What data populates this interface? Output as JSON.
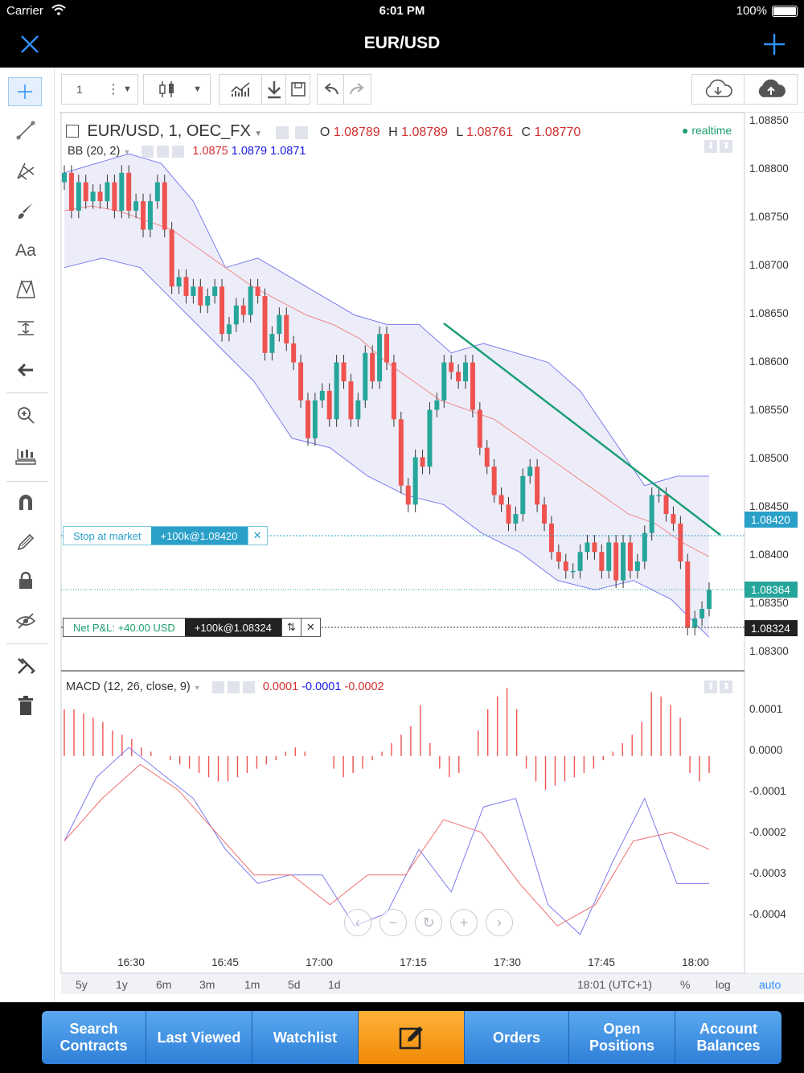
{
  "status": {
    "carrier": "Carrier",
    "time": "6:01 PM",
    "battery": "100%"
  },
  "nav": {
    "title": "EUR/USD"
  },
  "toolbar": {
    "interval": "1"
  },
  "legend": {
    "symbol": "EUR/USD, 1, OEC_FX",
    "o_label": "O",
    "o": "1.08789",
    "h_label": "H",
    "h": "1.08789",
    "l_label": "L",
    "l": "1.08761",
    "c_label": "C",
    "c": "1.08770",
    "realtime": "realtime",
    "bb_name": "BB (20, 2)",
    "bb_v1": "1.0875",
    "bb_v2": "1.0879",
    "bb_v3": "1.0871",
    "macd_name": "MACD (12, 26, close, 9)",
    "macd_v1": "0.0001",
    "macd_v2": "-0.0001",
    "macd_v3": "-0.0002"
  },
  "orders": {
    "stop_label": "Stop at market",
    "stop_value": "+100k@1.08420",
    "pnl_label": "Net P&L: +40.00 USD",
    "pos_value": "+100k@1.08324"
  },
  "price_tags": {
    "stop": "1.08420",
    "last": "1.08364",
    "position": "1.08324"
  },
  "price_axis": [
    "1.08850",
    "1.08800",
    "1.08750",
    "1.08700",
    "1.08650",
    "1.08600",
    "1.08550",
    "1.08500",
    "1.08450",
    "1.08400",
    "1.08350",
    "1.08300"
  ],
  "macd_axis": [
    "0.0001",
    "0.0000",
    "-0.0001",
    "-0.0002",
    "-0.0003",
    "-0.0004"
  ],
  "time_axis": [
    "16:30",
    "16:45",
    "17:00",
    "17:15",
    "17:30",
    "17:45",
    "18:00"
  ],
  "ranges": [
    "5y",
    "1y",
    "6m",
    "3m",
    "1m",
    "5d",
    "1d"
  ],
  "bottom_right": {
    "clock": "18:01 (UTC+1)",
    "pct": "%",
    "log": "log",
    "auto": "auto"
  },
  "tabs": [
    {
      "label": "Search Contracts"
    },
    {
      "label": "Last Viewed"
    },
    {
      "label": "Watchlist"
    },
    {
      "label": ""
    },
    {
      "label": "Orders"
    },
    {
      "label": "Open Positions"
    },
    {
      "label": "Account Balances"
    }
  ],
  "colors": {
    "up": "#26a69a",
    "down": "#ef5350",
    "accent": "#2f7fd8",
    "tab_active": "#f39512",
    "bb_fill": "#e6e6f7"
  },
  "chart_data": [
    {
      "type": "candlestick",
      "title": "EUR/USD, 1, OEC_FX",
      "x_ticks": [
        "16:30",
        "16:45",
        "17:00",
        "17:15",
        "17:30",
        "17:45",
        "18:00"
      ],
      "ylim": [
        1.0827,
        1.0886
      ],
      "series": [
        {
          "name": "EUR/USD",
          "close": [
            1.088,
            1.0876,
            1.0879,
            1.0877,
            1.0878,
            1.0877,
            1.0879,
            1.0876,
            1.088,
            1.0876,
            1.0877,
            1.0874,
            1.0877,
            1.0879,
            1.0874,
            1.0868,
            1.0869,
            1.0867,
            1.0868,
            1.0866,
            1.0867,
            1.0868,
            1.0863,
            1.0864,
            1.0866,
            1.0865,
            1.0868,
            1.0867,
            1.0861,
            1.0863,
            1.0865,
            1.0862,
            1.086,
            1.0856,
            1.0852,
            1.0856,
            1.0857,
            1.0854,
            1.086,
            1.0858,
            1.0854,
            1.0856,
            1.0861,
            1.0858,
            1.0863,
            1.086,
            1.0854,
            1.0847,
            1.0845,
            1.085,
            1.0849,
            1.0855,
            1.0856,
            1.086,
            1.0859,
            1.0858,
            1.086,
            1.0855,
            1.0851,
            1.0849,
            1.0846,
            1.0845,
            1.0843,
            1.0844,
            1.0848,
            1.0849,
            1.0845,
            1.0843,
            1.084,
            1.0839,
            1.0838,
            1.0838,
            1.084,
            1.0841,
            1.084,
            1.0838,
            1.0841,
            1.0837,
            1.0841,
            1.0838,
            1.0839,
            1.0842,
            1.0846,
            1.0846,
            1.0844,
            1.0843,
            1.0839,
            1.0832,
            1.0833,
            1.0834,
            1.0836
          ]
        }
      ]
    },
    {
      "type": "line",
      "title": "BB (20, 2)",
      "series": [
        {
          "name": "basis",
          "values": [
            1.0876,
            1.08765,
            1.0876,
            1.0875,
            1.0874,
            1.0872,
            1.087,
            1.0868,
            1.08665,
            1.0865,
            1.0864,
            1.08625,
            1.086,
            1.0858,
            1.0856,
            1.0855,
            1.0854,
            1.0852,
            1.085,
            1.0848,
            1.0846,
            1.0844,
            1.0843,
            1.0841,
            1.08395
          ]
        },
        {
          "name": "upper",
          "values": [
            1.088,
            1.0881,
            1.0882,
            1.0881,
            1.0877,
            1.087,
            1.0871,
            1.0869,
            1.0867,
            1.0865,
            1.0864,
            1.0864,
            1.0861,
            1.0862,
            1.0861,
            1.086,
            1.0857,
            1.0852,
            1.0847,
            1.0848,
            1.0848
          ]
        },
        {
          "name": "lower",
          "values": [
            1.087,
            1.0871,
            1.087,
            1.0866,
            1.0862,
            1.0858,
            1.0852,
            1.0851,
            1.0848,
            1.0846,
            1.0845,
            1.0842,
            1.084,
            1.0837,
            1.0836,
            1.0837,
            1.0835,
            1.0831
          ]
        }
      ]
    },
    {
      "type": "bar",
      "title": "MACD (12, 26, close, 9)",
      "ylim": [
        -0.0005,
        0.00017
      ],
      "series": [
        {
          "name": "histogram",
          "values": [
            0.00011,
            0.00011,
            0.0001,
            9e-05,
            8e-05,
            6e-05,
            5e-05,
            4e-05,
            2e-05,
            1e-05,
            0,
            -1e-05,
            -2e-05,
            -3e-05,
            -4e-05,
            -5e-05,
            -6e-05,
            -6e-05,
            -5e-05,
            -4e-05,
            -3e-05,
            -2e-05,
            -1e-05,
            1e-05,
            2e-05,
            1e-05,
            0,
            0,
            -3e-05,
            -5e-05,
            -4e-05,
            -3e-05,
            -1e-05,
            1e-05,
            3e-05,
            5e-05,
            7e-05,
            0.00012,
            3e-05,
            -3e-05,
            -5e-05,
            -4e-05,
            0,
            6e-05,
            0.00011,
            0.00014,
            0.00016,
            0.00011,
            -3e-05,
            -6e-05,
            -8e-05,
            -7e-05,
            -6e-05,
            -5e-05,
            -4e-05,
            -3e-05,
            -1e-05,
            1e-05,
            3e-05,
            5e-05,
            8e-05,
            0.00015,
            0.00014,
            0.00012,
            9e-05,
            -4e-05,
            -6e-05,
            -4e-05
          ]
        },
        {
          "name": "macd",
          "values": [
            -0.0002,
            -5e-05,
            2e-05,
            -4e-05,
            -0.0001,
            -0.00022,
            -0.0003,
            -0.00028,
            -0.00028,
            -0.0004,
            -0.00037,
            -0.00022,
            -0.00032,
            -0.00012,
            -0.0001,
            -0.00035,
            -0.00042,
            -0.00025,
            -0.0001,
            -0.0003,
            -0.0003
          ]
        },
        {
          "name": "signal",
          "values": [
            -0.0002,
            -0.0001,
            -2e-05,
            -8e-05,
            -0.00018,
            -0.00028,
            -0.00028,
            -0.00035,
            -0.00028,
            -0.00028,
            -0.00015,
            -0.00018,
            -0.0003,
            -0.0004,
            -0.00035,
            -0.0002,
            -0.00018,
            -0.00022
          ]
        }
      ]
    }
  ]
}
